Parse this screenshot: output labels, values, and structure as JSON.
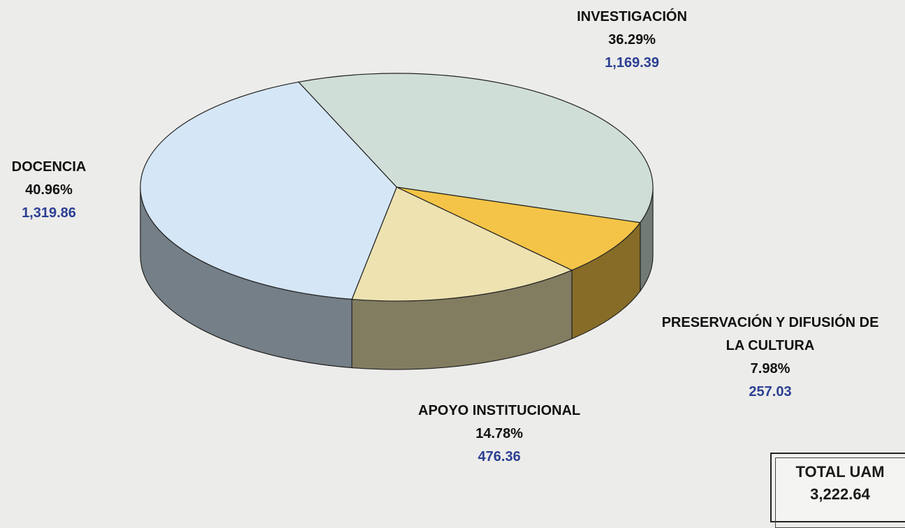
{
  "chart_data": {
    "type": "pie3d",
    "categories": [
      "INVESTIGACIÓN",
      "PRESERVACIÓN Y DIFUSIÓN DE LA CULTURA",
      "APOYO INSTITUCIONAL",
      "DOCENCIA"
    ],
    "values": [
      36.29,
      7.98,
      14.78,
      40.96
    ],
    "value_labels": [
      "36.29%",
      "7.98%",
      "14.78%",
      "40.96%"
    ],
    "amounts": [
      1169.39,
      257.03,
      476.36,
      1319.86
    ],
    "amount_labels": [
      "1,169.39",
      "257.03",
      "476.36",
      "1,319.86"
    ],
    "colors": [
      "#cfded6",
      "#f3c447",
      "#ede2b0",
      "#d5e6f6"
    ],
    "total_title": "TOTAL UAM",
    "total": {
      "value": 3222.64,
      "label": "3,222.64"
    }
  }
}
